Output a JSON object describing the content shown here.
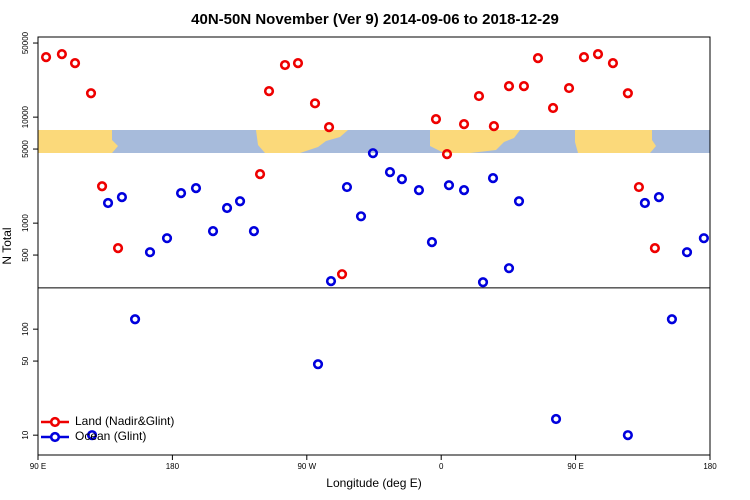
{
  "chart_data": {
    "type": "scatter",
    "title": "40N-50N November (Ver 9)   2014-09-06 to 2018-12-29",
    "x_label": "Longitude (deg E)",
    "y_label": "N Total",
    "log_y": true,
    "legend": "bottom-left",
    "xlim": [
      90,
      540
    ],
    "xticks": [
      {
        "value": 90,
        "label": "90 E"
      },
      180,
      {
        "value": 270,
        "label": "90 W"
      },
      {
        "value": 360,
        "label": "0"
      },
      {
        "value": 450,
        "label": "90 E"
      },
      {
        "value": 540,
        "label": "180"
      }
    ],
    "ylim": [
      6.5,
      57000
    ],
    "yticks": [
      10,
      50,
      100,
      500,
      1000,
      5000,
      10000,
      50000
    ],
    "hline": 245,
    "series": [
      {
        "name": "Land (Nadir&Glint)",
        "color": "#ee0000",
        "x": [
          95.4,
          106,
          114.8,
          125.5,
          132.9,
          143.6,
          238.7,
          244.7,
          255.4,
          264.1,
          275.5,
          284.9,
          293.6,
          356.5,
          363.9,
          375.3,
          385.3,
          395.3,
          405.4,
          415.4,
          424.8,
          434.9,
          445.6,
          455.6,
          465,
          475,
          485,
          492.4,
          503.1
        ],
        "values": [
          36800,
          39300,
          32300,
          16800,
          2230,
          581,
          2900,
          17600,
          31000,
          32300,
          13500,
          8050,
          330,
          9570,
          4480,
          8590,
          15800,
          8220,
          19600,
          19600,
          36000,
          12200,
          18800,
          36800,
          39300,
          32300,
          16800,
          2190,
          581
        ]
      },
      {
        "name": "Ocean (Glint)",
        "color": "#0000dd",
        "x": [
          126.2,
          136.9,
          146.2,
          155,
          165,
          176.4,
          185.8,
          195.8,
          207.2,
          216.6,
          225.3,
          234.6,
          277.5,
          286.2,
          296.9,
          306.3,
          314.3,
          325.7,
          333.7,
          345.1,
          353.8,
          365.2,
          375.3,
          388,
          394.7,
          405.4,
          412.1,
          436.9,
          485,
          496.4,
          505.8,
          514.5,
          524.6,
          535.9
        ],
        "values": [
          10,
          1550,
          1760,
          124,
          532,
          721,
          1920,
          2140,
          841,
          1390,
          1610,
          841,
          46.7,
          284,
          2190,
          1160,
          4570,
          3030,
          2600,
          2050,
          662,
          2280,
          2050,
          277,
          2660,
          376,
          1610,
          14.2,
          10,
          1550,
          1760,
          124,
          532,
          721
        ]
      }
    ]
  }
}
